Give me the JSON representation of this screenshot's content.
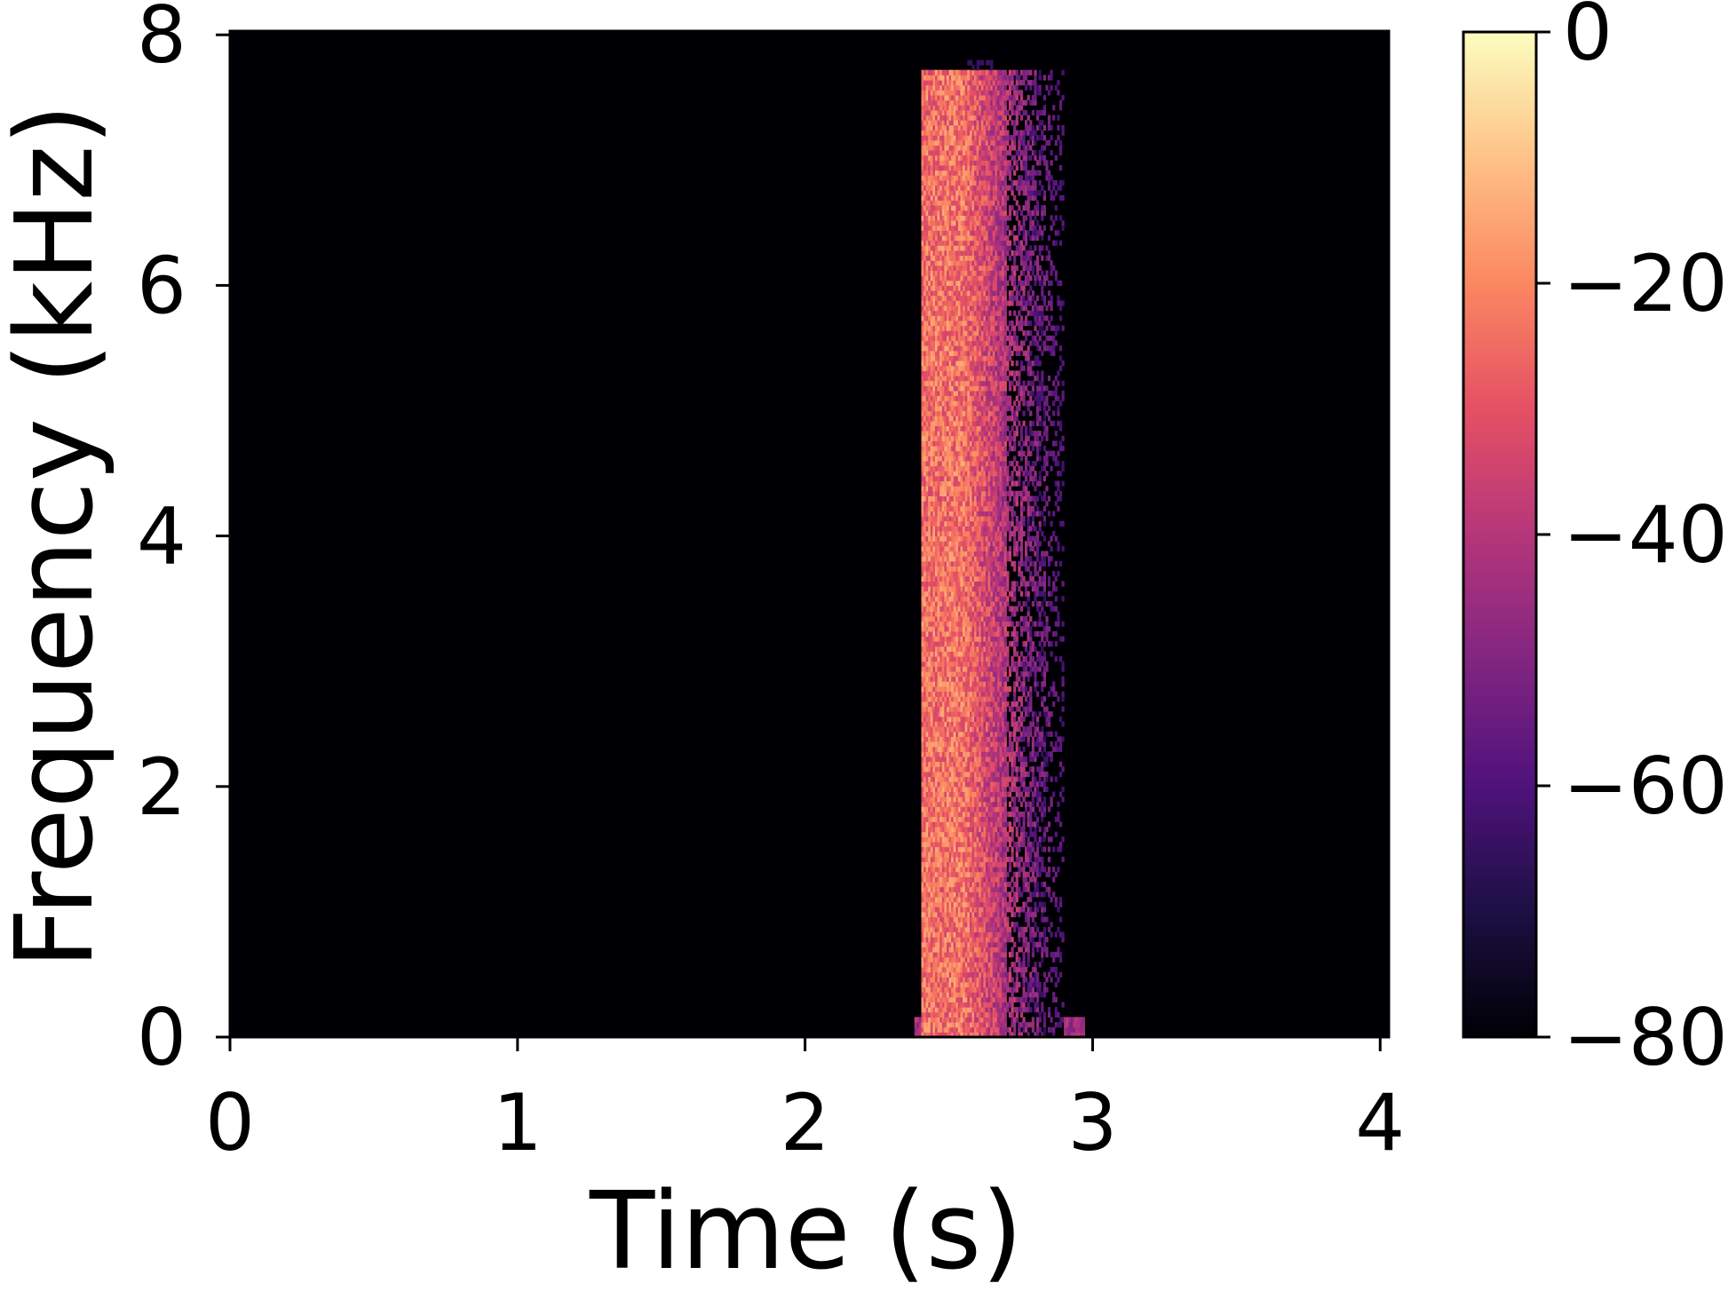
{
  "chart_data": {
    "type": "heatmap",
    "title": "",
    "xlabel": "Time (s)",
    "ylabel": "Frequency (kHz)",
    "xlim": [
      0,
      4.03
    ],
    "ylim": [
      0,
      8.03
    ],
    "xticks": [
      0,
      1,
      2,
      3,
      4
    ],
    "xtick_labels": [
      "0",
      "1",
      "2",
      "3",
      "4"
    ],
    "yticks": [
      0,
      2,
      4,
      6,
      8
    ],
    "ytick_labels": [
      "0",
      "2",
      "4",
      "6",
      "8"
    ],
    "grid": false,
    "legend": "none",
    "colormap": "magma",
    "colorbar": {
      "label": "",
      "range": [
        -80,
        0
      ],
      "ticks": [
        0,
        -20,
        -40,
        -60,
        -80
      ],
      "tick_labels": [
        "0",
        "−20",
        "−40",
        "−60",
        "−80"
      ],
      "colors": [
        "#000004",
        "#1c1044",
        "#4f127b",
        "#812581",
        "#b5367a",
        "#e55064",
        "#fb8761",
        "#fec287",
        "#fcfdbf"
      ]
    },
    "background_level_db": -80,
    "event": {
      "onset_s": 2.4,
      "offset_s": 2.9,
      "max_freq_khz": 7.7,
      "peak_level_db": -15,
      "peak_time_s": 2.5,
      "peak_freq_khz": 2.2,
      "low_band_khz": [
        0,
        0.12
      ],
      "low_band_offset_s": 2.97
    }
  }
}
